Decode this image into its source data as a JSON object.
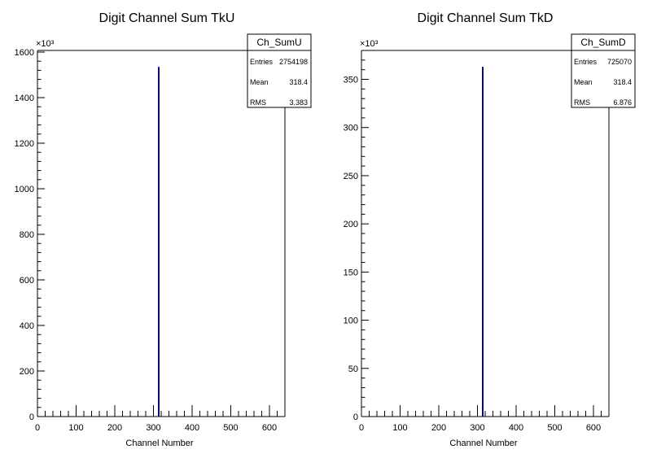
{
  "chart_data": [
    {
      "type": "histogram",
      "title": "Digit Channel Sum TkU",
      "xlabel": "Channel Number",
      "ylabel": "",
      "y_multiplier": "×10³",
      "xlim": [
        0,
        640
      ],
      "ylim": [
        0,
        1600
      ],
      "x_ticks": [
        0,
        100,
        200,
        300,
        400,
        500,
        600
      ],
      "y_ticks": [
        0,
        200,
        400,
        600,
        800,
        1000,
        1200,
        1400,
        1600
      ],
      "series": [
        {
          "x": [
            320
          ],
          "values": [
            1535
          ]
        }
      ],
      "stats_box": {
        "name": "Ch_SumU",
        "rows": [
          {
            "label": "Entries",
            "value": "2754198"
          },
          {
            "label": "Mean",
            "value": "318.4"
          },
          {
            "label": "RMS",
            "value": "3.383"
          }
        ]
      }
    },
    {
      "type": "histogram",
      "title": "Digit Channel Sum TkD",
      "xlabel": "Channel Number",
      "ylabel": "",
      "y_multiplier": "×10³",
      "xlim": [
        0,
        640
      ],
      "ylim": [
        0,
        380
      ],
      "x_ticks": [
        0,
        100,
        200,
        300,
        400,
        500,
        600
      ],
      "y_ticks": [
        0,
        50,
        100,
        150,
        200,
        250,
        300,
        350
      ],
      "series": [
        {
          "x": [
            320
          ],
          "values": [
            363
          ]
        }
      ],
      "stats_box": {
        "name": "Ch_SumD",
        "rows": [
          {
            "label": "Entries",
            "value": "725070"
          },
          {
            "label": "Mean",
            "value": "318.4"
          },
          {
            "label": "RMS",
            "value": "6.876"
          }
        ]
      }
    }
  ],
  "colors": {
    "histogram_line": "#0b0b6e",
    "axis": "#000000",
    "background": "#ffffff"
  }
}
